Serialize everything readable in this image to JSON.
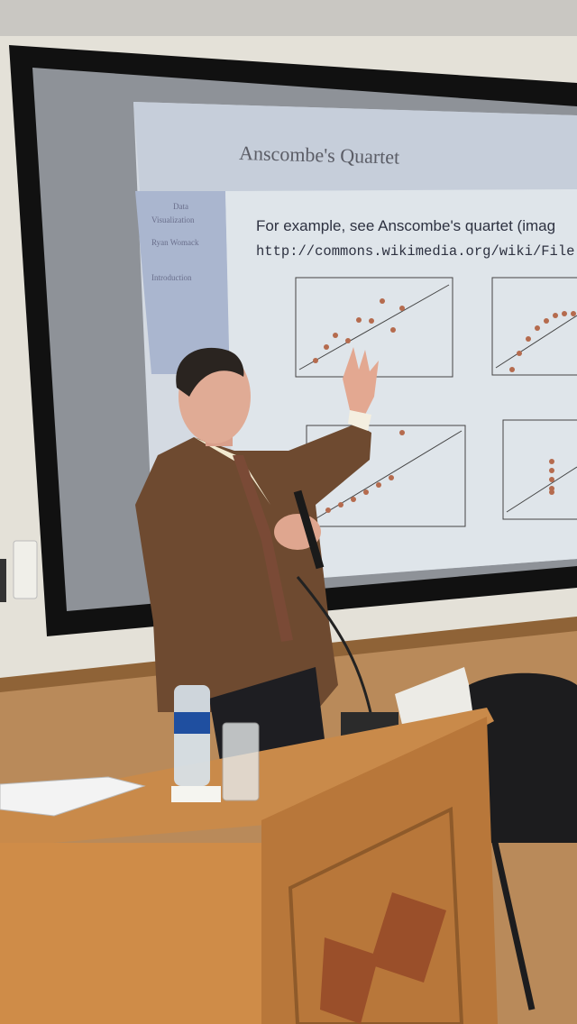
{
  "slide": {
    "title": "Anscombe's Quartet",
    "sidebar": [
      "Data",
      "Visualization",
      "Ryan Womack",
      "Introduction"
    ],
    "body": "For example, see Anscombe's quartet (imag",
    "url": "http://commons.wikimedia.org/wiki/File:An"
  }
}
